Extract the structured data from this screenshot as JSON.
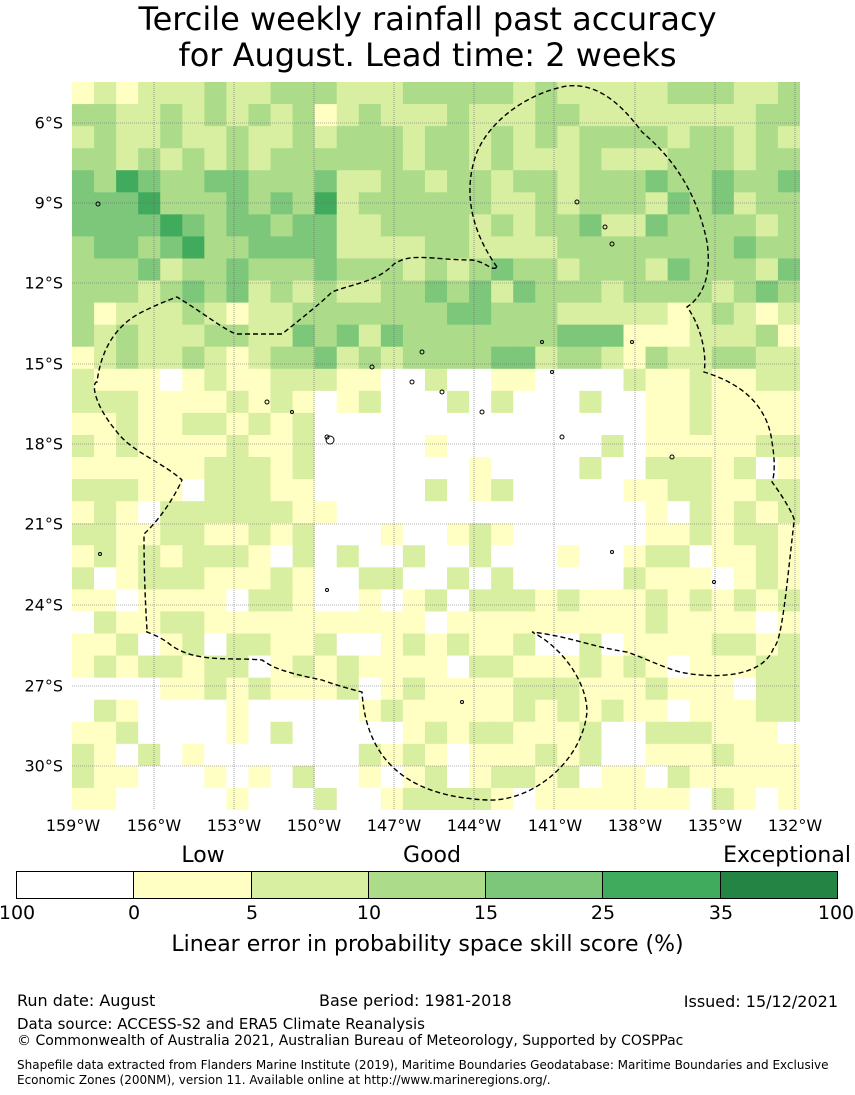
{
  "title_line1": "Tercile weekly rainfall past accuracy",
  "title_line2": "for August. Lead time: 2 weeks",
  "lat_labels": [
    "6°S",
    "9°S",
    "12°S",
    "15°S",
    "18°S",
    "21°S",
    "24°S",
    "27°S",
    "30°S"
  ],
  "lon_labels": [
    "159°W",
    "156°W",
    "153°W",
    "150°W",
    "147°W",
    "144°W",
    "141°W",
    "138°W",
    "135°W",
    "132°W"
  ],
  "legend": {
    "categories": [
      "Low",
      "Good",
      "Exceptional"
    ],
    "ticks": [
      "100",
      "0",
      "5",
      "10",
      "15",
      "25",
      "35",
      "100"
    ],
    "colors": [
      "#ffffff",
      "#ffffc4",
      "#d8eea0",
      "#acdc8a",
      "#7cc77a",
      "#41ab5d",
      "#238443"
    ],
    "label": "Linear error in probability space skill score (%)"
  },
  "footer": {
    "run_date": "Run date: August",
    "base_period": "Base period: 1981-2018",
    "issued": "Issued: 15/12/2021",
    "data_source": "Data source: ACCESS-S2 and ERA5 Climate Reanalysis",
    "copyright": "© Commonwealth of Australia 2021, Australian Bureau of Meteorology, Supported by COSPPac",
    "shapefile": "Shapefile data extracted from Flanders Marine Institute (2019), Maritime Boundaries Geodatabase: Maritime Boundaries and Exclusive Economic Zones (200NM), version 11. Available online at http://www.marineregions.org/."
  }
}
